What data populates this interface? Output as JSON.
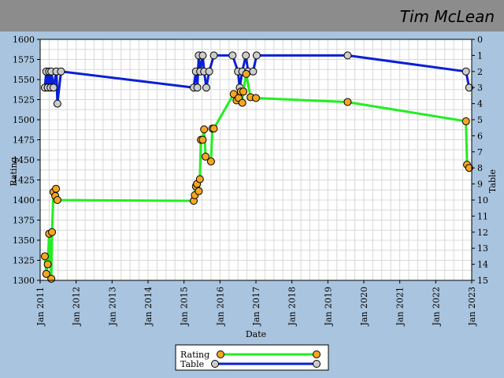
{
  "header": {
    "player_name": "Tim McLean"
  },
  "colors": {
    "page_bg": "#a9c4de",
    "header_bg": "#8c8c8c",
    "plot_bg": "#ffffff",
    "grid": "#d8d8d8",
    "rating_line": "#22ee22",
    "rating_marker": "#f5a623",
    "table_line": "#0a1fd6",
    "table_marker": "#cccccc"
  },
  "chart_data": {
    "type": "line",
    "xlabel": "Date",
    "ylabel": "Rating",
    "y2label": "Table",
    "xlim": [
      2011.0,
      2023.0
    ],
    "ylim": [
      1300,
      1600
    ],
    "y2lim": [
      0,
      15
    ],
    "y2_inverted": true,
    "x_ticks": [
      {
        "value": 2011,
        "label": "Jan 2011"
      },
      {
        "value": 2012,
        "label": "Jan 2012"
      },
      {
        "value": 2013,
        "label": "Jan 2013"
      },
      {
        "value": 2014,
        "label": "Jan 2014"
      },
      {
        "value": 2015,
        "label": "Jan 2015"
      },
      {
        "value": 2016,
        "label": "Jan 2016"
      },
      {
        "value": 2017,
        "label": "Jan 2017"
      },
      {
        "value": 2018,
        "label": "Jan 2018"
      },
      {
        "value": 2019,
        "label": "Jan 2019"
      },
      {
        "value": 2020,
        "label": "Jan 2020"
      },
      {
        "value": 2021,
        "label": "Jan 2021"
      },
      {
        "value": 2022,
        "label": "Jan 2022"
      },
      {
        "value": 2023,
        "label": "Jan 2023"
      }
    ],
    "y_ticks": [
      1300,
      1325,
      1350,
      1375,
      1400,
      1425,
      1450,
      1475,
      1500,
      1525,
      1550,
      1575,
      1600
    ],
    "y2_ticks": [
      0,
      1,
      2,
      3,
      4,
      5,
      6,
      7,
      8,
      9,
      10,
      11,
      12,
      13,
      14,
      15
    ],
    "legend": [
      {
        "label": "Rating",
        "series": "rating"
      },
      {
        "label": "Table",
        "series": "table"
      }
    ],
    "legend_position": "bottom-center",
    "series": [
      {
        "name": "Rating",
        "key": "rating",
        "axis": "left",
        "points": [
          [
            2011.13,
            1330
          ],
          [
            2011.17,
            1308
          ],
          [
            2011.21,
            1320
          ],
          [
            2011.25,
            1358
          ],
          [
            2011.31,
            1302
          ],
          [
            2011.33,
            1360
          ],
          [
            2011.37,
            1410
          ],
          [
            2011.42,
            1405
          ],
          [
            2011.44,
            1414
          ],
          [
            2011.48,
            1400
          ],
          [
            2015.27,
            1399
          ],
          [
            2015.3,
            1406
          ],
          [
            2015.33,
            1417
          ],
          [
            2015.36,
            1420
          ],
          [
            2015.41,
            1411
          ],
          [
            2015.44,
            1426
          ],
          [
            2015.47,
            1475
          ],
          [
            2015.52,
            1475
          ],
          [
            2015.56,
            1488
          ],
          [
            2015.6,
            1454
          ],
          [
            2015.75,
            1448
          ],
          [
            2015.79,
            1489
          ],
          [
            2015.83,
            1489
          ],
          [
            2016.38,
            1532
          ],
          [
            2016.46,
            1524
          ],
          [
            2016.52,
            1527
          ],
          [
            2016.58,
            1535
          ],
          [
            2016.62,
            1521
          ],
          [
            2016.65,
            1535
          ],
          [
            2016.73,
            1557
          ],
          [
            2016.85,
            1528
          ],
          [
            2017.0,
            1527
          ],
          [
            2019.55,
            1522
          ],
          [
            2022.84,
            1498
          ],
          [
            2022.87,
            1444
          ],
          [
            2022.93,
            1440
          ]
        ]
      },
      {
        "name": "Table",
        "key": "table",
        "axis": "right",
        "points": [
          [
            2011.13,
            3
          ],
          [
            2011.17,
            2
          ],
          [
            2011.21,
            3
          ],
          [
            2011.25,
            2
          ],
          [
            2011.29,
            3
          ],
          [
            2011.31,
            2
          ],
          [
            2011.37,
            3
          ],
          [
            2011.45,
            2
          ],
          [
            2011.48,
            4
          ],
          [
            2011.58,
            2
          ],
          [
            2015.27,
            3
          ],
          [
            2015.33,
            2
          ],
          [
            2015.37,
            3
          ],
          [
            2015.41,
            1
          ],
          [
            2015.45,
            2
          ],
          [
            2015.52,
            1
          ],
          [
            2015.56,
            2
          ],
          [
            2015.62,
            3
          ],
          [
            2015.7,
            2
          ],
          [
            2015.83,
            1
          ],
          [
            2016.35,
            1
          ],
          [
            2016.5,
            2
          ],
          [
            2016.55,
            3
          ],
          [
            2016.62,
            2
          ],
          [
            2016.72,
            1
          ],
          [
            2016.78,
            2
          ],
          [
            2016.92,
            2
          ],
          [
            2017.02,
            1
          ],
          [
            2019.55,
            1
          ],
          [
            2022.84,
            2
          ],
          [
            2022.93,
            3
          ]
        ]
      }
    ]
  }
}
